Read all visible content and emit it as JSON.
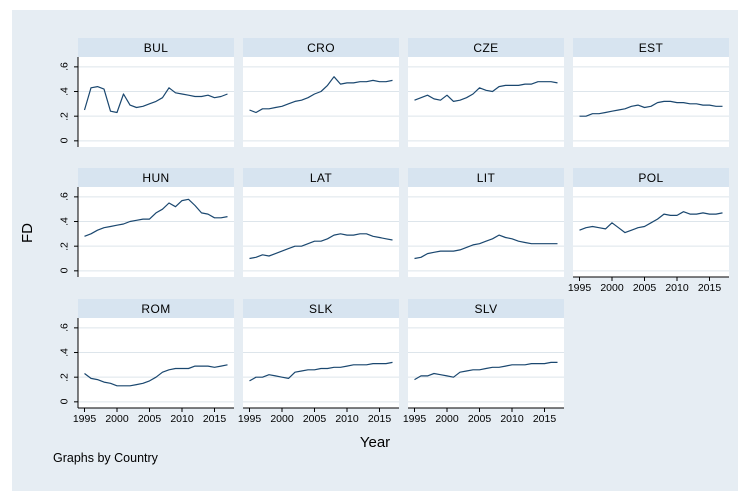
{
  "figure": {
    "ylabel": "FD",
    "xlabel": "Year",
    "note": "Graphs by Country"
  },
  "chart_data": {
    "type": "line",
    "layout": "faceted small multiples, 4 columns x 3 rows, shared axes",
    "title": "",
    "xlabel": "Year",
    "ylabel": "FD",
    "note": "Graphs by Country",
    "x": [
      1995,
      1996,
      1997,
      1998,
      1999,
      2000,
      2001,
      2002,
      2003,
      2004,
      2005,
      2006,
      2007,
      2008,
      2009,
      2010,
      2011,
      2012,
      2013,
      2014,
      2015,
      2016,
      2017
    ],
    "x_ticks": [
      1995,
      2000,
      2005,
      2010,
      2015
    ],
    "x_tick_labels": [
      "1995",
      "2000",
      "2005",
      "2010",
      "2015"
    ],
    "y_ticks": [
      0,
      0.2,
      0.4,
      0.6
    ],
    "y_tick_labels": [
      "0",
      ".2",
      ".4",
      ".6"
    ],
    "xlim": [
      1994,
      2018
    ],
    "ylim": [
      -0.05,
      0.68
    ],
    "grid": true,
    "legend": "none",
    "colors": {
      "line": "#1a476f",
      "canvas_bg": "#e6edf3",
      "strip_bg": "#d7e4f0",
      "plot_bg": "#ffffff",
      "gridline": "#dde5eb",
      "axis": "#000000"
    },
    "panels": [
      {
        "title": "BUL",
        "row": 0,
        "col": 0,
        "left_axis": true,
        "bottom_axis": false,
        "values": [
          0.25,
          0.43,
          0.44,
          0.42,
          0.24,
          0.23,
          0.38,
          0.29,
          0.27,
          0.28,
          0.3,
          0.32,
          0.35,
          0.43,
          0.39,
          0.38,
          0.37,
          0.36,
          0.36,
          0.37,
          0.35,
          0.36,
          0.38
        ]
      },
      {
        "title": "CRO",
        "row": 0,
        "col": 1,
        "left_axis": false,
        "bottom_axis": false,
        "values": [
          0.25,
          0.23,
          0.26,
          0.26,
          0.27,
          0.28,
          0.3,
          0.32,
          0.33,
          0.35,
          0.38,
          0.4,
          0.45,
          0.52,
          0.46,
          0.47,
          0.47,
          0.48,
          0.48,
          0.49,
          0.48,
          0.48,
          0.49
        ]
      },
      {
        "title": "CZE",
        "row": 0,
        "col": 2,
        "left_axis": false,
        "bottom_axis": false,
        "values": [
          0.33,
          0.35,
          0.37,
          0.34,
          0.33,
          0.37,
          0.32,
          0.33,
          0.35,
          0.38,
          0.43,
          0.41,
          0.4,
          0.44,
          0.45,
          0.45,
          0.45,
          0.46,
          0.46,
          0.48,
          0.48,
          0.48,
          0.47
        ]
      },
      {
        "title": "EST",
        "row": 0,
        "col": 3,
        "left_axis": false,
        "bottom_axis": false,
        "values": [
          0.2,
          0.2,
          0.22,
          0.22,
          0.23,
          0.24,
          0.25,
          0.26,
          0.28,
          0.29,
          0.27,
          0.28,
          0.31,
          0.32,
          0.32,
          0.31,
          0.31,
          0.3,
          0.3,
          0.29,
          0.29,
          0.28,
          0.28
        ]
      },
      {
        "title": "HUN",
        "row": 1,
        "col": 0,
        "left_axis": true,
        "bottom_axis": false,
        "values": [
          0.28,
          0.3,
          0.33,
          0.35,
          0.36,
          0.37,
          0.38,
          0.4,
          0.41,
          0.42,
          0.42,
          0.47,
          0.5,
          0.55,
          0.52,
          0.57,
          0.58,
          0.53,
          0.47,
          0.46,
          0.43,
          0.43,
          0.44
        ]
      },
      {
        "title": "LAT",
        "row": 1,
        "col": 1,
        "left_axis": false,
        "bottom_axis": false,
        "values": [
          0.1,
          0.11,
          0.13,
          0.12,
          0.14,
          0.16,
          0.18,
          0.2,
          0.2,
          0.22,
          0.24,
          0.24,
          0.26,
          0.29,
          0.3,
          0.29,
          0.29,
          0.3,
          0.3,
          0.28,
          0.27,
          0.26,
          0.25
        ]
      },
      {
        "title": "LIT",
        "row": 1,
        "col": 2,
        "left_axis": false,
        "bottom_axis": false,
        "values": [
          0.1,
          0.11,
          0.14,
          0.15,
          0.16,
          0.16,
          0.16,
          0.17,
          0.19,
          0.21,
          0.22,
          0.24,
          0.26,
          0.29,
          0.27,
          0.26,
          0.24,
          0.23,
          0.22,
          0.22,
          0.22,
          0.22,
          0.22
        ]
      },
      {
        "title": "POL",
        "row": 1,
        "col": 3,
        "left_axis": false,
        "bottom_axis": true,
        "values": [
          0.33,
          0.35,
          0.36,
          0.35,
          0.34,
          0.39,
          0.35,
          0.31,
          0.33,
          0.35,
          0.36,
          0.39,
          0.42,
          0.46,
          0.45,
          0.45,
          0.48,
          0.46,
          0.46,
          0.47,
          0.46,
          0.46,
          0.47
        ]
      },
      {
        "title": "ROM",
        "row": 2,
        "col": 0,
        "left_axis": true,
        "bottom_axis": true,
        "values": [
          0.23,
          0.19,
          0.18,
          0.16,
          0.15,
          0.13,
          0.13,
          0.13,
          0.14,
          0.15,
          0.17,
          0.2,
          0.24,
          0.26,
          0.27,
          0.27,
          0.27,
          0.29,
          0.29,
          0.29,
          0.28,
          0.29,
          0.3
        ]
      },
      {
        "title": "SLK",
        "row": 2,
        "col": 1,
        "left_axis": false,
        "bottom_axis": true,
        "values": [
          0.17,
          0.2,
          0.2,
          0.22,
          0.21,
          0.2,
          0.19,
          0.24,
          0.25,
          0.26,
          0.26,
          0.27,
          0.27,
          0.28,
          0.28,
          0.29,
          0.3,
          0.3,
          0.3,
          0.31,
          0.31,
          0.31,
          0.32
        ]
      },
      {
        "title": "SLV",
        "row": 2,
        "col": 2,
        "left_axis": false,
        "bottom_axis": true,
        "values": [
          0.18,
          0.21,
          0.21,
          0.23,
          0.22,
          0.21,
          0.2,
          0.24,
          0.25,
          0.26,
          0.26,
          0.27,
          0.28,
          0.28,
          0.29,
          0.3,
          0.3,
          0.3,
          0.31,
          0.31,
          0.31,
          0.32,
          0.32
        ]
      }
    ]
  }
}
